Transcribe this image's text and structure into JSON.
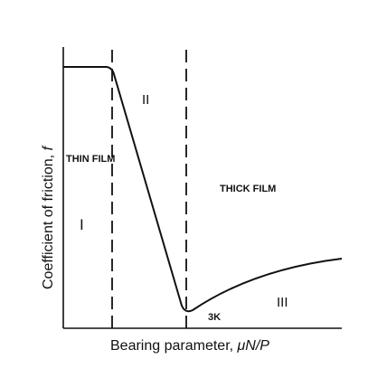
{
  "diagram": {
    "axes": {
      "x_title": "Bearing parameter, ",
      "x_title_symbol": "μN/P",
      "y_title": "Coefficient of friction, ",
      "y_title_symbol": "f"
    },
    "regions": [
      {
        "id": "I",
        "label": "I"
      },
      {
        "id": "II",
        "label": "II"
      },
      {
        "id": "III",
        "label": "III"
      }
    ],
    "film_labels": {
      "thin": "THIN FILM",
      "thick": "THICK FILM"
    },
    "minimum_point_label": "3K",
    "colors": {
      "line": "#111111",
      "background": "#ffffff"
    }
  }
}
